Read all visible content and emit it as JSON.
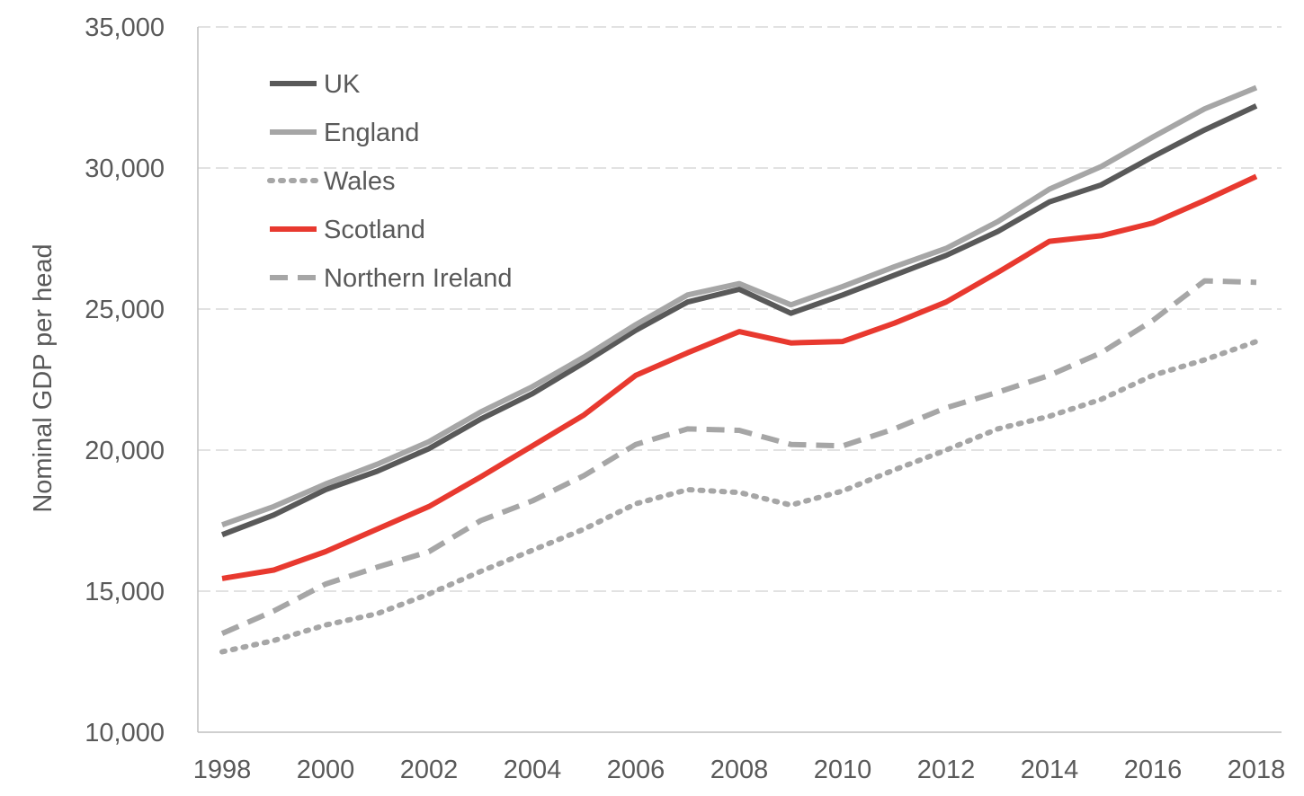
{
  "chart_data": {
    "type": "line",
    "title": "",
    "xlabel": "",
    "ylabel": "Nominal GDP per head",
    "xlim": [
      1998,
      2018
    ],
    "ylim": [
      10000,
      35000
    ],
    "y_ticks": [
      {
        "value": 10000,
        "label": "10,000"
      },
      {
        "value": 15000,
        "label": "15,000"
      },
      {
        "value": 20000,
        "label": "20,000"
      },
      {
        "value": 25000,
        "label": "25,000"
      },
      {
        "value": 30000,
        "label": "30,000"
      },
      {
        "value": 35000,
        "label": "35,000"
      }
    ],
    "x_ticks": [
      1998,
      2000,
      2002,
      2004,
      2006,
      2008,
      2010,
      2012,
      2014,
      2016,
      2018
    ],
    "grid": "horizontal dashed",
    "legend_position": "top-left",
    "x": [
      1998,
      1999,
      2000,
      2001,
      2002,
      2003,
      2004,
      2005,
      2006,
      2007,
      2008,
      2009,
      2010,
      2011,
      2012,
      2013,
      2014,
      2015,
      2016,
      2017,
      2018
    ],
    "series": [
      {
        "name": "UK",
        "color": "#595959",
        "style": "solid",
        "values": [
          17000,
          17700,
          18600,
          19250,
          20050,
          21100,
          22000,
          23100,
          24250,
          25250,
          25700,
          24850,
          25500,
          26200,
          26900,
          27750,
          28800,
          29400,
          30400,
          31350,
          32200
        ]
      },
      {
        "name": "England",
        "color": "#a6a6a6",
        "style": "solid",
        "values": [
          17350,
          18000,
          18800,
          19500,
          20300,
          21350,
          22250,
          23300,
          24450,
          25500,
          25900,
          25150,
          25800,
          26500,
          27150,
          28100,
          29250,
          30050,
          31100,
          32100,
          32850
        ]
      },
      {
        "name": "Wales",
        "color": "#a6a6a6",
        "style": "dotted",
        "values": [
          12850,
          13250,
          13800,
          14200,
          14900,
          15700,
          16450,
          17200,
          18100,
          18600,
          18500,
          18050,
          18550,
          19300,
          20000,
          20750,
          21200,
          21800,
          22650,
          23200,
          23850
        ]
      },
      {
        "name": "Scotland",
        "color": "#e8392f",
        "style": "solid",
        "values": [
          15450,
          15750,
          16400,
          17200,
          18000,
          19050,
          20150,
          21250,
          22650,
          23450,
          24200,
          23800,
          23850,
          24500,
          25250,
          26300,
          27400,
          27600,
          28050,
          28850,
          29700
        ]
      },
      {
        "name": "Northern Ireland",
        "color": "#a6a6a6",
        "style": "dashed",
        "values": [
          13500,
          14300,
          15250,
          15850,
          16400,
          17500,
          18200,
          19100,
          20200,
          20750,
          20700,
          20200,
          20150,
          20750,
          21500,
          22050,
          22650,
          23450,
          24600,
          26000,
          25950
        ]
      }
    ]
  }
}
